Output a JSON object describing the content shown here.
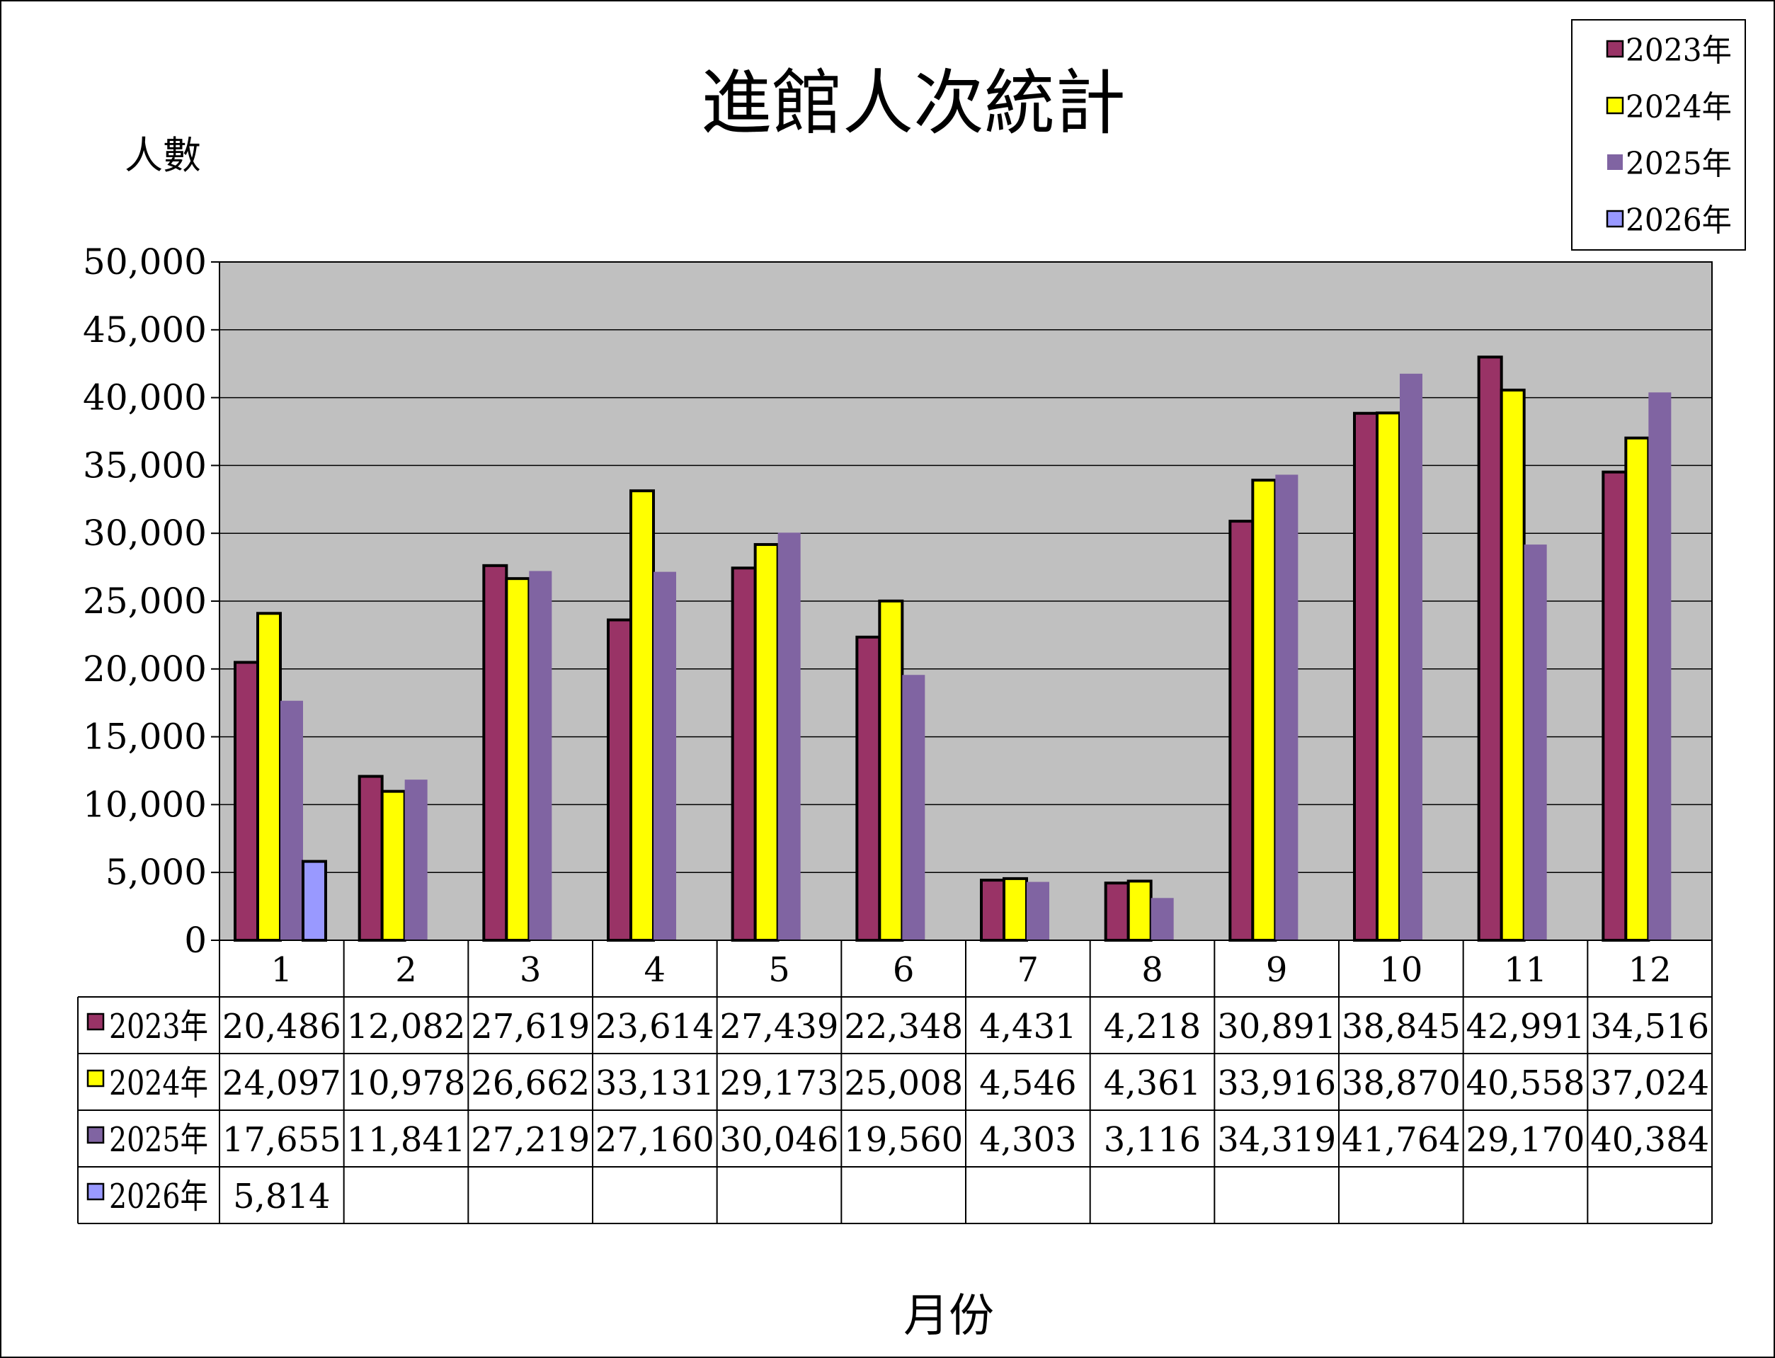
{
  "chart_data": {
    "type": "bar",
    "title": "進館人次統計",
    "ylabel": "人數",
    "xlabel": "月份",
    "categories": [
      "1",
      "2",
      "3",
      "4",
      "5",
      "6",
      "7",
      "8",
      "9",
      "10",
      "11",
      "12"
    ],
    "ylim": [
      0,
      50000
    ],
    "yticks": [
      0,
      5000,
      10000,
      15000,
      20000,
      25000,
      30000,
      35000,
      40000,
      45000,
      50000
    ],
    "ytick_labels": [
      "0",
      "5,000",
      "10,000",
      "15,000",
      "20,000",
      "25,000",
      "30,000",
      "35,000",
      "40,000",
      "45,000",
      "50,000"
    ],
    "grid": true,
    "legend_position": "top-right",
    "plot_background": "#c0c0c0",
    "series": [
      {
        "name": "2023年",
        "color": "#993366",
        "values": [
          20486,
          12082,
          27619,
          23614,
          27439,
          22348,
          4431,
          4218,
          30891,
          38845,
          42991,
          34516
        ],
        "labels": [
          "20,486",
          "12,082",
          "27,619",
          "23,614",
          "27,439",
          "22,348",
          "4,431",
          "4,218",
          "30,891",
          "38,845",
          "42,991",
          "34,516"
        ]
      },
      {
        "name": "2024年",
        "color": "#ffff00",
        "values": [
          24097,
          10978,
          26662,
          33131,
          29173,
          25008,
          4546,
          4361,
          33916,
          38870,
          40558,
          37024
        ],
        "labels": [
          "24,097",
          "10,978",
          "26,662",
          "33,131",
          "29,173",
          "25,008",
          "4,546",
          "4,361",
          "33,916",
          "38,870",
          "40,558",
          "37,024"
        ]
      },
      {
        "name": "2025年",
        "color": "#8064a2",
        "values": [
          17655,
          11841,
          27219,
          27160,
          30046,
          19560,
          4303,
          3116,
          34319,
          41764,
          29170,
          40384
        ],
        "labels": [
          "17,655",
          "11,841",
          "27,219",
          "27,160",
          "30,046",
          "19,560",
          "4,303",
          "3,116",
          "34,319",
          "41,764",
          "29,170",
          "40,384"
        ]
      },
      {
        "name": "2026年",
        "color": "#9999ff",
        "values": [
          5814,
          null,
          null,
          null,
          null,
          null,
          null,
          null,
          null,
          null,
          null,
          null
        ],
        "labels": [
          "5,814",
          "",
          "",
          "",
          "",
          "",
          "",
          "",
          "",
          "",
          "",
          ""
        ]
      }
    ]
  }
}
